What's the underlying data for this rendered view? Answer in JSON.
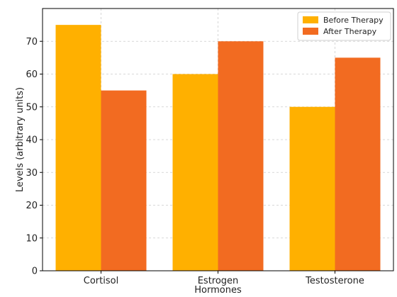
{
  "chart_data": {
    "type": "bar",
    "categories": [
      "Cortisol",
      "Estrogen",
      "Testosterone"
    ],
    "series": [
      {
        "name": "Before Therapy",
        "values": [
          75,
          60,
          50
        ],
        "color": "#FFB000"
      },
      {
        "name": "After Therapy",
        "values": [
          55,
          70,
          65
        ],
        "color": "#F26B21"
      }
    ],
    "title": "",
    "xlabel": "Hormones",
    "ylabel": "Levels (arbitrary units)",
    "ylim": [
      0,
      80
    ],
    "yticks": [
      0,
      10,
      20,
      30,
      40,
      50,
      60,
      70
    ],
    "grid": true,
    "legend_position": "top-right"
  }
}
